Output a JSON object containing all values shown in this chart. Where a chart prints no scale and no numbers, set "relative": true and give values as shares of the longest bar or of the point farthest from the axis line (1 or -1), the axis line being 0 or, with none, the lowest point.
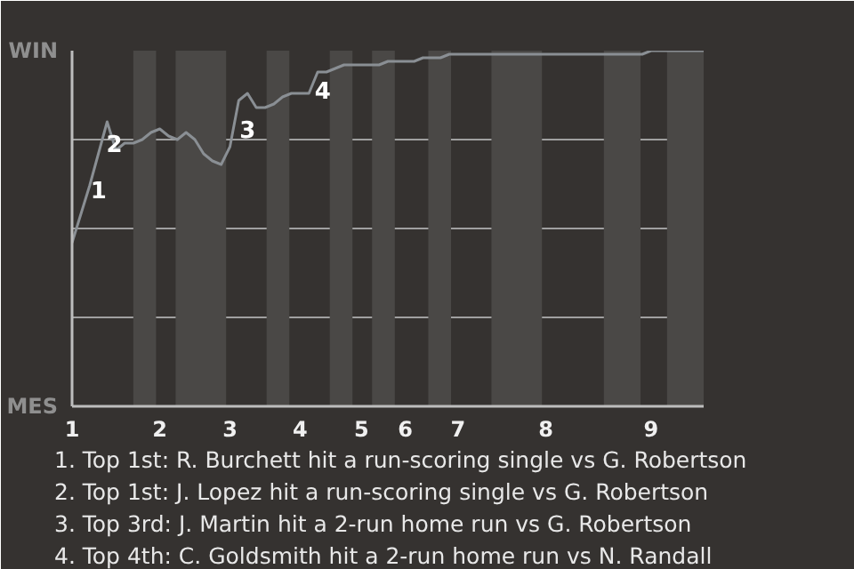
{
  "chart_data": {
    "type": "line",
    "relative": true,
    "categories": [
      "1",
      null,
      null,
      null,
      null,
      null,
      null,
      null,
      null,
      null,
      "2",
      null,
      null,
      null,
      null,
      null,
      null,
      null,
      "3",
      null,
      null,
      null,
      null,
      null,
      null,
      null,
      "4",
      null,
      null,
      null,
      null,
      null,
      null,
      "5",
      null,
      null,
      null,
      null,
      "6",
      null,
      null,
      null,
      null,
      null,
      "7",
      null,
      null,
      null,
      null,
      null,
      null,
      null,
      null,
      null,
      "8",
      null,
      null,
      null,
      null,
      null,
      null,
      null,
      null,
      null,
      null,
      null,
      "9",
      null,
      null,
      null,
      null,
      null,
      null
    ],
    "series": [
      {
        "color": "#8a8f94",
        "values": [
          0.46,
          0.54,
          0.62,
          0.71,
          0.8,
          0.72,
          0.74,
          0.74,
          0.75,
          0.77,
          0.78,
          0.76,
          0.75,
          0.77,
          0.75,
          0.71,
          0.69,
          0.68,
          0.73,
          0.86,
          0.88,
          0.84,
          0.84,
          0.85,
          0.87,
          0.88,
          0.88,
          0.88,
          0.94,
          0.94,
          0.95,
          0.96,
          0.96,
          0.96,
          0.96,
          0.96,
          0.97,
          0.97,
          0.97,
          0.97,
          0.98,
          0.98,
          0.98,
          0.99,
          0.99,
          0.99,
          0.99,
          0.99,
          0.99,
          0.99,
          0.99,
          0.99,
          0.99,
          0.99,
          0.99,
          0.99,
          0.99,
          0.99,
          0.99,
          0.99,
          0.99,
          0.99,
          0.99,
          0.99,
          0.99,
          0.99,
          1,
          1,
          1,
          1,
          1,
          1,
          1
        ],
        "name": null
      }
    ],
    "grid": "y",
    "annotations": [
      "WIN",
      "MES",
      "1",
      "2",
      "3",
      "4",
      "1. Top 1st: R. Burchett hit a run-scoring single vs G. Robertson",
      "2. Top 1st: J. Lopez hit a run-scoring single vs G. Robertson",
      "3. Top 3rd: J. Martin hit a 2-run home run vs G. Robertson",
      "4. Top 4th: C. Goldsmith hit a 2-run home run vs N. Randall"
    ]
  }
}
